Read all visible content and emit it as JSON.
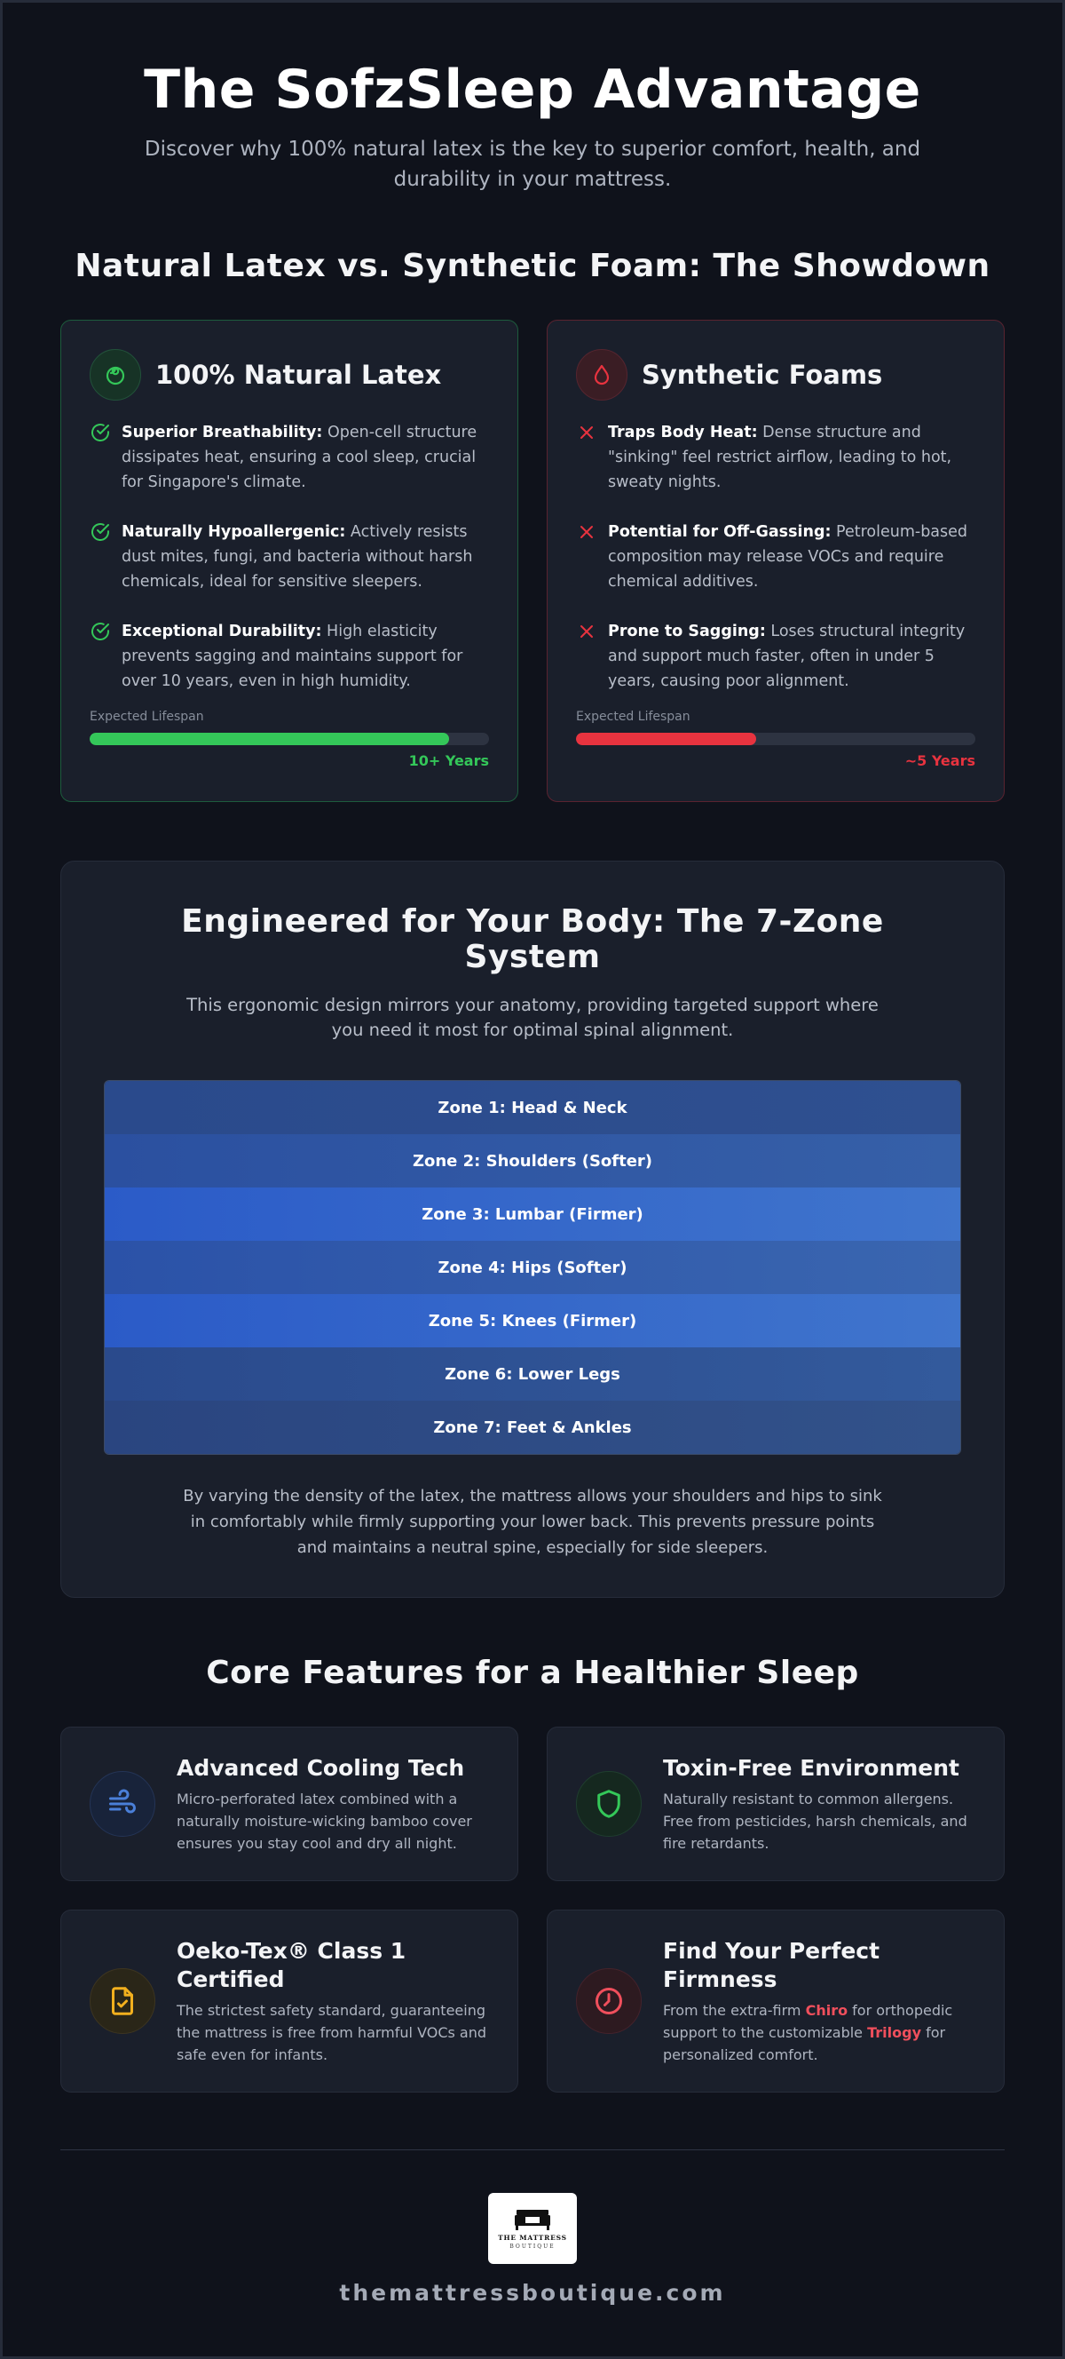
{
  "hero": {
    "title": "The SofzSleep Advantage",
    "subtitle": "Discover why 100% natural latex is the key to superior comfort, health, and durability in your mattress."
  },
  "showdown": {
    "title": "Natural Latex vs. Synthetic Foam: The Showdown",
    "latex": {
      "icon": "leaf-icon",
      "title": "100% Natural Latex",
      "items": [
        {
          "label": "Superior Breathability:",
          "text": " Open-cell structure dissipates heat, ensuring a cool sleep, crucial for Singapore's climate."
        },
        {
          "label": "Naturally Hypoallergenic:",
          "text": " Actively resists dust mites, fungi, and bacteria without harsh chemicals, ideal for sensitive sleepers."
        },
        {
          "label": "Exceptional Durability:",
          "text": " High elasticity prevents sagging and maintains support for over 10 years, even in high humidity."
        }
      ],
      "lifespan_label": "Expected Lifespan",
      "lifespan_value": "10+ Years",
      "lifespan_fraction": 0.9,
      "color": "#34c759"
    },
    "foam": {
      "icon": "droplet-icon",
      "title": "Synthetic Foams",
      "items": [
        {
          "label": "Traps Body Heat:",
          "text": " Dense structure and \"sinking\" feel restrict airflow, leading to hot, sweaty nights."
        },
        {
          "label": "Potential for Off-Gassing:",
          "text": " Petroleum-based composition may release VOCs and require chemical additives."
        },
        {
          "label": "Prone to Sagging:",
          "text": " Loses structural integrity and support much faster, often in under 5 years, causing poor alignment."
        }
      ],
      "lifespan_label": "Expected Lifespan",
      "lifespan_value": "~5 Years",
      "lifespan_fraction": 0.45,
      "color": "#e8333f"
    }
  },
  "zones": {
    "title": "Engineered for Your Body: The 7-Zone System",
    "subtitle": "This ergonomic design mirrors your anatomy, providing targeted support where you need it most for optimal spinal alignment.",
    "items": [
      "Zone 1: Head & Neck",
      "Zone 2: Shoulders (Softer)",
      "Zone 3: Lumbar (Firmer)",
      "Zone 4: Hips (Softer)",
      "Zone 5: Knees (Firmer)",
      "Zone 6: Lower Legs",
      "Zone 7: Feet & Ankles"
    ],
    "note": "By varying the density of the latex, the mattress allows your shoulders and hips to sink in comfortably while firmly supporting your lower back. This prevents pressure points and maintains a neutral spine, especially for side sleepers."
  },
  "features": {
    "title": "Core Features for a Healthier Sleep",
    "items": [
      {
        "icon": "wind-icon",
        "title": "Advanced Cooling Tech",
        "text": "Micro-perforated latex combined with a naturally moisture-wicking bamboo cover ensures you stay cool and dry all night.",
        "color": "#4a7fd8"
      },
      {
        "icon": "shield-icon",
        "title": "Toxin-Free Environment",
        "text": "Naturally resistant to common allergens. Free from pesticides, harsh chemicals, and fire retardants.",
        "color": "#34c759"
      },
      {
        "icon": "certified-document-icon",
        "title": "Oeko-Tex® Class 1 Certified",
        "text": "The strictest safety standard, guaranteeing the mattress is free from harmful VOCs and safe even for infants.",
        "color": "#f2b01e"
      },
      {
        "icon": "clock-icon",
        "title": "Find Your Perfect Firmness",
        "text_pre": "From the extra-firm ",
        "hl1": "Chiro",
        "text_mid": " for orthopedic support to the customizable ",
        "hl2": "Trilogy",
        "text_post": " for personalized comfort.",
        "color": "#f04f5c"
      }
    ]
  },
  "footer": {
    "logo_line1": "THE MATTRESS",
    "logo_line2": "BOUTIQUE",
    "website": "themattressboutique.com"
  }
}
